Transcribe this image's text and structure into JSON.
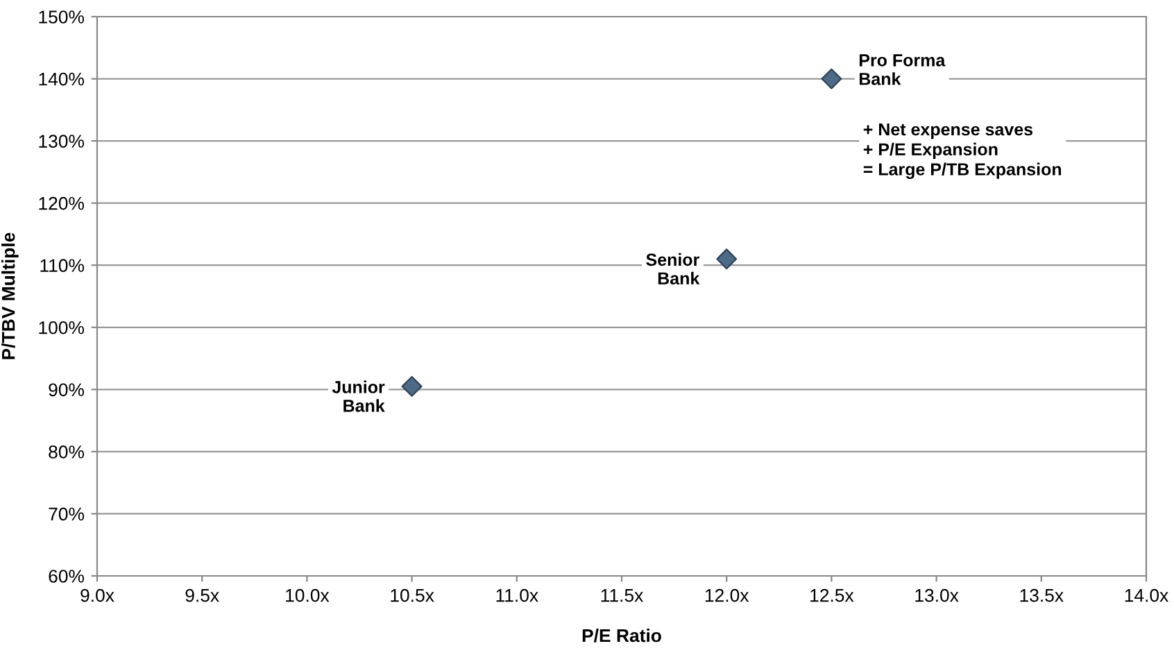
{
  "chart_data": {
    "type": "scatter",
    "xlabel": "P/E Ratio",
    "ylabel": "P/TBV Multiple",
    "x": [
      10.5,
      12.0,
      12.5
    ],
    "series": [
      {
        "color": "#4d6a87",
        "values": [
          90.5,
          111,
          140
        ]
      }
    ],
    "marker": "diamond",
    "grid": "y",
    "legend": false,
    "xlim": [
      9.0,
      14.0
    ],
    "xticks": [
      {
        "value": 9.0,
        "label": "9.0x"
      },
      {
        "value": 9.5,
        "label": "9.5x"
      },
      {
        "value": 10.0,
        "label": "10.0x"
      },
      {
        "value": 10.5,
        "label": "10.5x"
      },
      {
        "value": 11.0,
        "label": "11.0x"
      },
      {
        "value": 11.5,
        "label": "11.5x"
      },
      {
        "value": 12.0,
        "label": "12.0x"
      },
      {
        "value": 12.5,
        "label": "12.5x"
      },
      {
        "value": 13.0,
        "label": "13.0x"
      },
      {
        "value": 13.5,
        "label": "13.5x"
      },
      {
        "value": 14.0,
        "label": "14.0x"
      }
    ],
    "ylim": [
      60,
      150
    ],
    "yticks": [
      {
        "value": 60,
        "label": "60%"
      },
      {
        "value": 70,
        "label": "70%"
      },
      {
        "value": 80,
        "label": "80%"
      },
      {
        "value": 90,
        "label": "90%"
      },
      {
        "value": 100,
        "label": "100%"
      },
      {
        "value": 110,
        "label": "110%"
      },
      {
        "value": 120,
        "label": "120%"
      },
      {
        "value": 130,
        "label": "130%"
      },
      {
        "value": 140,
        "label": "140%"
      },
      {
        "value": 150,
        "label": "150%"
      }
    ],
    "annotations": [
      {
        "text": "Junior\nBank",
        "x": 10.5,
        "y": 90.5
      },
      {
        "text": "Senior\nBank",
        "x": 12.0,
        "y": 111
      },
      {
        "text": "Pro Forma\nBank",
        "x": 12.5,
        "y": 140
      },
      "+ Net expense saves\n+ P/E Expansion\n= Large P/TB Expansion"
    ]
  }
}
